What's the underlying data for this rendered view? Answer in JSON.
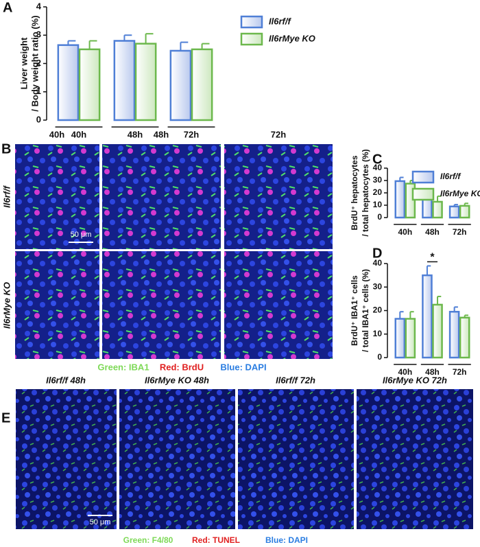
{
  "panel_labels": [
    "A",
    "B",
    "C",
    "D",
    "E"
  ],
  "chart_data": [
    {
      "type": "bar",
      "ylabel": [
        "Liver weight",
        "/ Body weight ratio (%)"
      ],
      "categories": [
        "40h",
        "48h",
        "72h"
      ],
      "series": [
        {
          "name": "Il6rf/f",
          "color": "#4f7fd6",
          "values": [
            2.65,
            2.8,
            2.45
          ],
          "errors": [
            0.15,
            0.2,
            0.3
          ]
        },
        {
          "name": "Il6rMye KO",
          "color": "#6cb84c",
          "values": [
            2.5,
            2.7,
            2.5
          ],
          "errors": [
            0.3,
            0.35,
            0.2
          ]
        }
      ],
      "ylim": [
        0,
        4
      ],
      "yticks": [
        0,
        1,
        2,
        3,
        4
      ],
      "legend": "right"
    },
    {
      "type": "bar",
      "ylabel": [
        "BrdU⁺ hepatocytes",
        "/ total hepatocytes (%)"
      ],
      "categories": [
        "40h",
        "48h",
        "72h"
      ],
      "series": [
        {
          "name": "Il6rf/f",
          "color": "#4f7fd6",
          "values": [
            29.5,
            14.5,
            9
          ],
          "errors": [
            3,
            2.5,
            1.5
          ]
        },
        {
          "name": "Il6rMye KO",
          "color": "#6cb84c",
          "values": [
            27.5,
            12.8,
            9.5
          ],
          "errors": [
            2.5,
            4.5,
            2
          ]
        }
      ],
      "ylim": [
        0,
        40
      ],
      "yticks": [
        0,
        10,
        20,
        30,
        40
      ],
      "legend": "top-right"
    },
    {
      "type": "bar",
      "ylabel": [
        "BrdU⁺ IBA1⁺ cells",
        "/ total IBA1⁺ cells (%)"
      ],
      "categories": [
        "40h",
        "48h",
        "72h"
      ],
      "series": [
        {
          "name": "Il6rf/f",
          "color": "#4f7fd6",
          "values": [
            16.5,
            35,
            19.5
          ],
          "errors": [
            3,
            4,
            2
          ]
        },
        {
          "name": "Il6rMye KO",
          "color": "#6cb84c",
          "values": [
            16.5,
            22.5,
            17
          ],
          "errors": [
            3,
            3.5,
            1
          ]
        }
      ],
      "ylim": [
        0,
        40
      ],
      "yticks": [
        0,
        10,
        20,
        30,
        40
      ],
      "annotation": "*"
    }
  ],
  "panel_b": {
    "columns": [
      "40h",
      "48h",
      "72h"
    ],
    "rows": [
      "Il6rf/f",
      "Il6rMye KO"
    ],
    "scale_bar": "50 μm",
    "stains": [
      "Green: IBA1",
      "Red: BrdU",
      "Blue: DAPI"
    ]
  },
  "panel_e": {
    "columns": [
      "Il6rf/f 48h",
      "Il6rMye KO 48h",
      "Il6rf/f 72h",
      "Il6rMye KO 72h"
    ],
    "scale_bar": "50 μm",
    "stains": [
      "Green: F4/80",
      "Red: TUNEL",
      "Blue: DAPI"
    ]
  }
}
